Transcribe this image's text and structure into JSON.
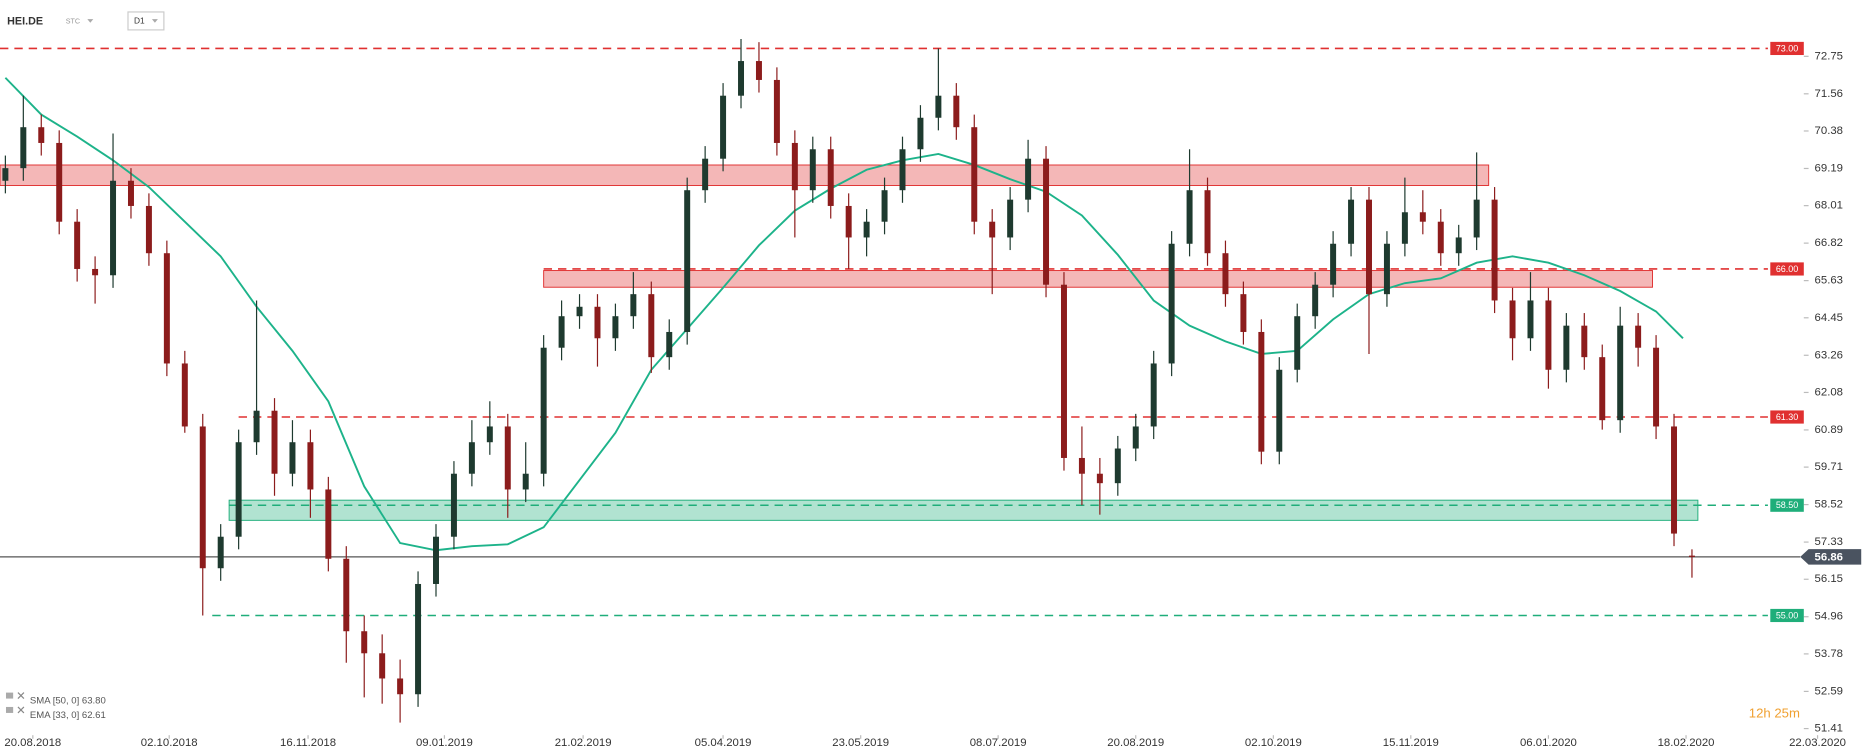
{
  "chart_data": {
    "type": "candlestick",
    "title": "HEI.DE",
    "chart_style": "STC",
    "interval": "D1",
    "up_color": "#1e3a2f",
    "down_color": "#8c1c1c",
    "xlim": [
      -0.3,
      103.3
    ],
    "ylim": [
      51.2,
      74.5
    ],
    "xticks": [
      {
        "value": 1.53,
        "label": "20.08.2018"
      },
      {
        "value": 9.13,
        "label": "02.10.2018"
      },
      {
        "value": 16.87,
        "label": "16.11.2018"
      },
      {
        "value": 24.47,
        "label": "09.01.2019"
      },
      {
        "value": 32.2,
        "label": "21.02.2019"
      },
      {
        "value": 40,
        "label": "05.04.2019"
      },
      {
        "value": 47.67,
        "label": "23.05.2019"
      },
      {
        "value": 55.33,
        "label": "08.07.2019"
      },
      {
        "value": 63,
        "label": "20.08.2019"
      },
      {
        "value": 70.67,
        "label": "02.10.2019"
      },
      {
        "value": 78.33,
        "label": "15.11.2019"
      },
      {
        "value": 86,
        "label": "06.01.2020"
      },
      {
        "value": 93.67,
        "label": "18.02.2020"
      },
      {
        "value": 101,
        "label": "22.03.2020"
      }
    ],
    "yticks": [
      72.75,
      71.56,
      70.38,
      69.19,
      68.01,
      66.82,
      65.63,
      64.45,
      63.26,
      62.08,
      60.89,
      59.71,
      58.52,
      57.33,
      56.15,
      54.96,
      53.78,
      52.59,
      51.41
    ],
    "x": [
      0,
      1,
      2,
      3,
      4,
      5,
      6,
      7,
      8,
      9,
      10,
      11,
      12,
      13,
      14,
      15,
      16,
      17,
      18,
      19,
      20,
      21,
      22,
      23,
      24,
      25,
      26,
      27,
      28,
      29,
      30,
      31,
      32,
      33,
      34,
      35,
      36,
      37,
      38,
      39,
      40,
      41,
      42,
      43,
      44,
      45,
      46,
      47,
      48,
      49,
      50,
      51,
      52,
      53,
      54,
      55,
      56,
      57,
      58,
      59,
      60,
      61,
      62,
      63,
      64,
      65,
      66,
      67,
      68,
      69,
      70,
      71,
      72,
      73,
      74,
      75,
      76,
      77,
      78,
      79,
      80,
      81,
      82,
      83,
      84,
      85,
      86,
      87,
      88,
      89,
      90,
      91,
      92,
      93,
      94
    ],
    "open": [
      68.8,
      69.2,
      70.5,
      70.0,
      67.5,
      66.0,
      65.8,
      68.8,
      68.0,
      66.5,
      63.0,
      61.0,
      56.5,
      57.5,
      60.5,
      61.5,
      59.5,
      60.5,
      59.0,
      56.8,
      54.5,
      53.8,
      53.0,
      52.5,
      56.0,
      57.5,
      59.5,
      60.5,
      61.0,
      59.0,
      59.5,
      63.5,
      64.5,
      64.8,
      63.8,
      64.5,
      65.2,
      63.2,
      64.0,
      68.5,
      69.5,
      71.5,
      72.6,
      72.0,
      70.0,
      68.5,
      69.8,
      68.0,
      67.0,
      67.5,
      68.5,
      69.8,
      70.8,
      71.5,
      70.5,
      67.5,
      67.0,
      68.2,
      69.5,
      65.5,
      60.0,
      59.5,
      59.2,
      60.3,
      61.0,
      63.0,
      66.8,
      68.5,
      66.5,
      65.2,
      64.0,
      60.2,
      62.8,
      64.5,
      65.5,
      66.8,
      68.2,
      65.2,
      66.8,
      67.8,
      67.5,
      66.5,
      67.0,
      68.2,
      65.0,
      63.8,
      65.0,
      62.8,
      64.2,
      63.2,
      61.2,
      64.2,
      63.5,
      61.0,
      56.9
    ],
    "high": [
      69.6,
      71.5,
      70.9,
      70.4,
      67.9,
      66.4,
      70.3,
      69.2,
      68.4,
      66.9,
      63.4,
      61.4,
      57.9,
      60.9,
      65.0,
      61.9,
      61.2,
      60.9,
      59.4,
      57.2,
      55.0,
      54.4,
      53.6,
      56.4,
      57.9,
      59.9,
      61.2,
      61.8,
      61.4,
      60.5,
      63.9,
      65.0,
      65.2,
      65.2,
      64.9,
      65.9,
      65.6,
      64.4,
      68.9,
      69.9,
      71.9,
      73.3,
      73.2,
      72.4,
      70.4,
      70.2,
      70.2,
      68.4,
      67.9,
      68.9,
      70.2,
      71.2,
      73.0,
      71.9,
      70.9,
      67.9,
      68.6,
      70.1,
      69.9,
      65.9,
      61.0,
      60.0,
      60.7,
      61.4,
      63.4,
      67.2,
      69.8,
      68.9,
      66.9,
      65.6,
      64.4,
      63.2,
      64.9,
      65.9,
      67.2,
      68.6,
      68.6,
      67.2,
      68.9,
      68.5,
      67.9,
      67.4,
      69.7,
      68.6,
      65.4,
      65.9,
      65.4,
      64.6,
      64.6,
      63.6,
      64.8,
      64.6,
      63.9,
      61.4,
      57.1
    ],
    "low": [
      68.4,
      68.8,
      69.6,
      67.1,
      65.6,
      64.9,
      65.4,
      67.6,
      66.1,
      62.6,
      60.8,
      55.0,
      56.1,
      57.1,
      60.1,
      58.8,
      59.1,
      58.1,
      56.4,
      53.5,
      52.4,
      52.2,
      51.6,
      52.1,
      55.6,
      57.1,
      59.1,
      60.1,
      58.1,
      58.6,
      59.1,
      63.1,
      64.1,
      62.9,
      63.4,
      64.1,
      62.7,
      62.8,
      63.6,
      68.1,
      69.1,
      71.1,
      71.6,
      69.6,
      67.0,
      68.1,
      67.6,
      66.0,
      66.4,
      67.1,
      68.1,
      69.4,
      70.4,
      70.1,
      67.1,
      65.2,
      66.6,
      67.8,
      65.1,
      59.6,
      58.5,
      58.2,
      58.8,
      59.9,
      60.6,
      62.6,
      66.4,
      66.1,
      64.8,
      63.6,
      59.8,
      59.8,
      62.4,
      64.1,
      65.1,
      66.4,
      63.3,
      64.8,
      66.4,
      67.1,
      66.1,
      66.1,
      66.6,
      64.6,
      63.1,
      63.4,
      62.2,
      62.4,
      62.8,
      60.9,
      60.8,
      62.9,
      60.6,
      57.2,
      56.2
    ],
    "close": [
      69.2,
      70.5,
      70.0,
      67.5,
      66.0,
      65.8,
      68.8,
      68.0,
      66.5,
      63.0,
      61.0,
      56.5,
      57.5,
      60.5,
      61.5,
      59.5,
      60.5,
      59.0,
      56.8,
      54.5,
      53.8,
      53.0,
      52.5,
      56.0,
      57.5,
      59.5,
      60.5,
      61.0,
      59.0,
      59.5,
      63.5,
      64.5,
      64.8,
      63.8,
      64.5,
      65.2,
      63.2,
      64.0,
      68.5,
      69.5,
      71.5,
      72.6,
      72.0,
      70.0,
      68.5,
      69.8,
      68.0,
      67.0,
      67.5,
      68.5,
      69.8,
      70.8,
      71.5,
      70.5,
      67.5,
      67.0,
      68.2,
      69.5,
      65.5,
      60.0,
      59.5,
      59.2,
      60.3,
      61.0,
      63.0,
      66.8,
      68.5,
      66.5,
      65.2,
      64.0,
      60.2,
      62.8,
      64.5,
      65.5,
      66.8,
      68.2,
      65.2,
      66.8,
      67.8,
      67.5,
      66.5,
      67.0,
      68.2,
      65.0,
      63.8,
      65.0,
      62.8,
      64.2,
      63.2,
      61.2,
      64.2,
      63.5,
      61.0,
      57.6,
      56.86
    ],
    "last_price": 56.86,
    "indicators": [
      {
        "name": "SMA [50, 0] 63.80",
        "color": "#1db38a",
        "x": [
          0,
          2,
          4,
          6,
          8,
          10,
          12,
          14,
          16,
          18,
          20,
          22,
          24,
          26,
          28,
          30,
          32,
          34,
          36,
          38,
          40,
          42,
          44,
          46,
          48,
          50,
          52,
          54,
          56,
          58,
          60,
          62,
          64,
          66,
          68,
          70,
          72,
          74,
          76,
          78,
          80,
          82,
          84,
          86,
          88,
          90,
          92,
          93.5
        ],
        "values": [
          72.07,
          70.9,
          70.2,
          69.45,
          68.6,
          67.5,
          66.4,
          64.8,
          63.4,
          61.8,
          59.1,
          57.3,
          57.07,
          57.2,
          57.26,
          57.8,
          59.3,
          60.8,
          62.8,
          64.1,
          65.4,
          66.75,
          67.85,
          68.55,
          69.15,
          69.45,
          69.65,
          69.3,
          68.85,
          68.45,
          67.7,
          66.45,
          65.0,
          64.2,
          63.7,
          63.3,
          63.4,
          64.4,
          65.2,
          65.55,
          65.7,
          66.2,
          66.4,
          66.2,
          65.8,
          65.3,
          64.65,
          63.8
        ]
      },
      {
        "name": "EMA [33, 0] 62.61"
      }
    ],
    "zones": [
      {
        "low": 68.65,
        "high": 69.3,
        "from": -0.3,
        "to": 82.67,
        "color": "#e03030"
      },
      {
        "low": 65.42,
        "high": 65.95,
        "from": 30,
        "to": 91.8,
        "color": "#e03030"
      },
      {
        "low": 58.02,
        "high": 58.66,
        "from": 12.47,
        "to": 94.33,
        "color": "#1fae7a"
      }
    ],
    "levels": [
      {
        "value": 73.0,
        "label": "73.00",
        "from": -0.3,
        "color": "#e03030"
      },
      {
        "value": 66.0,
        "label": "66.00",
        "from": 30,
        "color": "#e03030"
      },
      {
        "value": 61.3,
        "label": "61.30",
        "from": 13,
        "color": "#e03030"
      },
      {
        "value": 58.5,
        "label": "58.50",
        "from": 12.47,
        "color": "#1fae7a"
      },
      {
        "value": 55.0,
        "label": "55.00",
        "from": 11.53,
        "color": "#1fae7a"
      }
    ],
    "countdown": "12h 25m"
  }
}
